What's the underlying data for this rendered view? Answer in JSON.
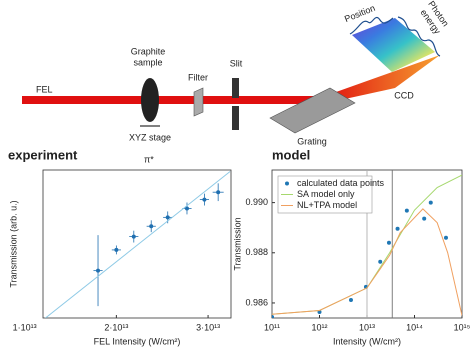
{
  "diagram": {
    "fel": "FEL",
    "graphite_sample": [
      "Graphite",
      "sample"
    ],
    "xyz_stage": "XYZ stage",
    "filter": "Filter",
    "slit": "Slit",
    "grating": "Grating",
    "ccd": "CCD",
    "position": "Position",
    "photon_energy": [
      "Photon",
      "energy"
    ]
  },
  "chart_data": [
    {
      "type": "scatter",
      "title": "experiment",
      "annotation": "π*",
      "x_label": "FEL Intensity (W/cm²)",
      "y_label": "Transmission (arb. u.)",
      "xlim": [
        12000000000000.0,
        32500000000000.0
      ],
      "ylim": [
        0,
        1
      ],
      "xticks": [
        {
          "value": 10000000000000.0,
          "label": "1·10¹³"
        },
        {
          "value": 20000000000000.0,
          "label": "2·10¹³"
        },
        {
          "value": 30000000000000.0,
          "label": "3·10¹³"
        }
      ],
      "yticks": [],
      "series": [
        {
          "style": "markers",
          "color": "#1f6fb0",
          "x": [
            18000000000000.0,
            20000000000000.0,
            21900000000000.0,
            23800000000000.0,
            25600000000000.0,
            27700000000000.0,
            29600000000000.0,
            31100000000000.0
          ],
          "values": [
            0.32,
            0.46,
            0.55,
            0.62,
            0.68,
            0.74,
            0.8,
            0.85
          ],
          "errors": [
            0.24,
            0.03,
            0.04,
            0.04,
            0.04,
            0.04,
            0.04,
            0.06
          ],
          "x_errors": [
            500000000000.0,
            500000000000.0,
            500000000000.0,
            500000000000.0,
            500000000000.0,
            500000000000.0,
            500000000000.0,
            600000000000.0
          ]
        },
        {
          "style": "line",
          "color": "#8ecae6",
          "x": [
            12270000000000.0,
            32400000000000.0
          ],
          "values": [
            0,
            0.99
          ]
        }
      ]
    },
    {
      "type": "scatter",
      "title": "model",
      "x_label": "Intensity (W/cm²)",
      "y_label": "Transmission",
      "xscale": "log",
      "xlim": [
        100000000000.0,
        1000000000000000.0
      ],
      "ylim": [
        0.9854,
        0.9913
      ],
      "xticks": [
        {
          "value": 100000000000.0,
          "label": "10¹¹"
        },
        {
          "value": 1000000000000.0,
          "label": "10¹²"
        },
        {
          "value": 10000000000000.0,
          "label": "10¹³"
        },
        {
          "value": 100000000000000.0,
          "label": "10¹⁴"
        },
        {
          "value": 1000000000000000.0,
          "label": "10¹⁵"
        }
      ],
      "yticks": [
        0.986,
        0.988,
        {
          "value": 0.99,
          "label": "0.990"
        }
      ],
      "vlines": [
        {
          "x": 10000000000000.0,
          "color": "#b0b0b0"
        },
        {
          "x": 34000000000000.0,
          "color": "#707070"
        }
      ],
      "legend": "upper left",
      "series": [
        {
          "name": "calculated data points",
          "style": "markers",
          "color": "#1f77b4",
          "x": [
            100000000000.0,
            1000000000000.0,
            4600000000000.0,
            9500000000000.0,
            19000000000000.0,
            29000000000000.0,
            44000000000000.0,
            69000000000000.0,
            160000000000000.0,
            220000000000000.0,
            460000000000000.0
          ],
          "values": [
            0.98544,
            0.98564,
            0.98612,
            0.98664,
            0.98764,
            0.9884,
            0.98896,
            0.98968,
            0.98936,
            0.99,
            0.9886
          ]
        },
        {
          "name": "SA model only",
          "style": "line",
          "color": "#a6d86e",
          "x": [
            100000000000.0,
            1000000000000.0,
            10000000000000.0,
            30000000000000.0,
            100000000000000.0,
            300000000000000.0,
            1000000000000000.0
          ],
          "values": [
            0.98555,
            0.9857,
            0.9866,
            0.988,
            0.9897,
            0.9906,
            0.9911
          ]
        },
        {
          "name": "NL+TPA model",
          "style": "line",
          "color": "#f0a060",
          "x": [
            100000000000.0,
            1000000000000.0,
            10000000000000.0,
            30000000000000.0,
            50000000000000.0,
            150000000000000.0,
            300000000000000.0,
            500000000000000.0,
            1000000000000000.0
          ],
          "values": [
            0.98555,
            0.9857,
            0.9866,
            0.9879,
            0.9888,
            0.98975,
            0.9892,
            0.988,
            0.9855
          ]
        }
      ]
    }
  ]
}
